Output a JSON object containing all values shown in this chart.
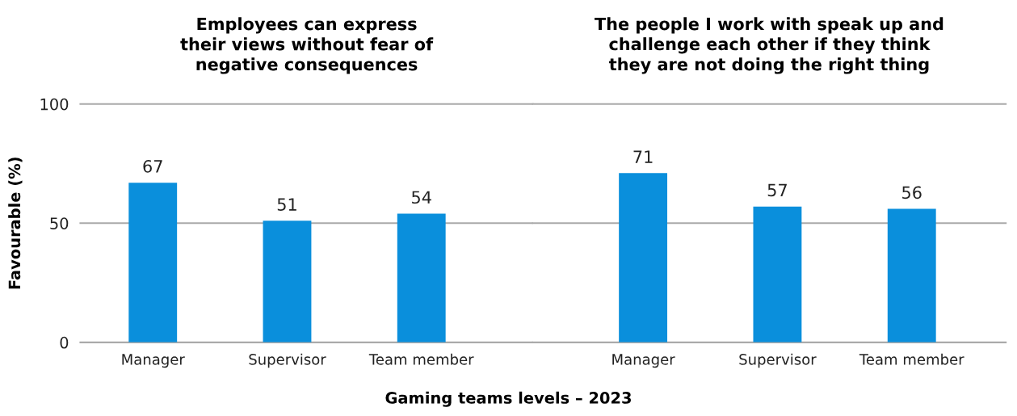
{
  "chart_data": [
    {
      "type": "bar",
      "title": "Employees can express\ntheir views without fear of\nnegative consequences",
      "xlabel": "Gaming teams levels – 2023",
      "ylabel": "Favourable (%)",
      "categories": [
        "Manager",
        "Supervisor",
        "Team member"
      ],
      "values": [
        67,
        51,
        54
      ],
      "color": "#0a8fdc",
      "ylim": [
        0,
        100
      ],
      "yticks": [
        0,
        50,
        100
      ],
      "grid": "y",
      "data_labels": true
    },
    {
      "type": "bar",
      "title": "The people I work with speak up and\nchallenge each other if they think\nthey are not doing the right thing",
      "categories": [
        "Manager",
        "Supervisor",
        "Team member"
      ],
      "values": [
        71,
        57,
        56
      ],
      "color": "#0a8fdc",
      "ylim": [
        0,
        100
      ],
      "yticks": [
        0,
        50,
        100
      ],
      "grid": "y",
      "data_labels": true,
      "tick_labels": "x"
    }
  ]
}
